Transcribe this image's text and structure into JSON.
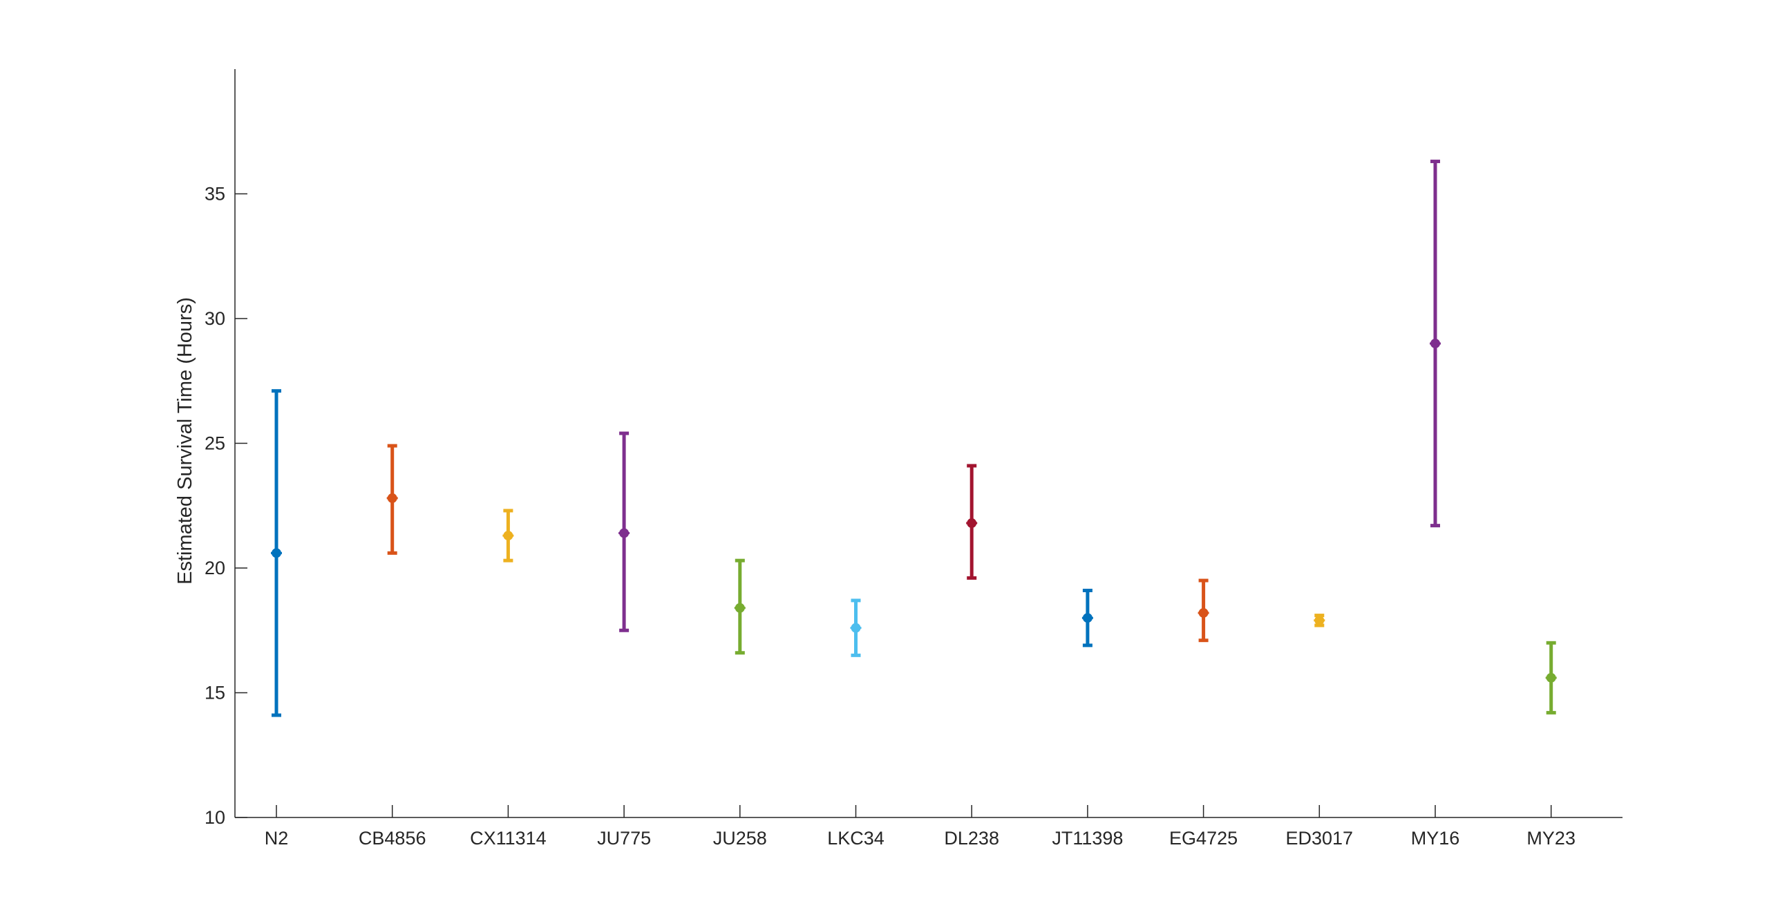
{
  "chart_data": {
    "type": "errorbar",
    "ylabel": "Estimated Survival Time (Hours)",
    "xlabel": "",
    "ylim": [
      10,
      40
    ],
    "yticks": [
      10,
      15,
      20,
      25,
      30,
      35
    ],
    "grid": false,
    "categories": [
      "N2",
      "CB4856",
      "CX11314",
      "JU775",
      "JU258",
      "LKC34",
      "DL238",
      "JT11398",
      "EG4725",
      "ED3017",
      "MY16",
      "MY23"
    ],
    "values": [
      20.6,
      22.8,
      21.3,
      21.4,
      18.4,
      17.6,
      21.8,
      18.0,
      18.2,
      17.9,
      29.0,
      15.6
    ],
    "lower": [
      14.1,
      20.6,
      20.3,
      17.5,
      16.6,
      16.5,
      19.6,
      16.9,
      17.1,
      17.7,
      21.7,
      14.2
    ],
    "upper": [
      27.1,
      24.9,
      22.3,
      25.4,
      20.3,
      18.7,
      24.1,
      19.1,
      19.5,
      18.1,
      36.3,
      17.0
    ],
    "colors": [
      "#0072BD",
      "#D95319",
      "#EDB120",
      "#7E2F8E",
      "#77AC30",
      "#4DBEEE",
      "#A2142F",
      "#0072BD",
      "#D95319",
      "#EDB120",
      "#7E2F8E",
      "#77AC30"
    ]
  }
}
